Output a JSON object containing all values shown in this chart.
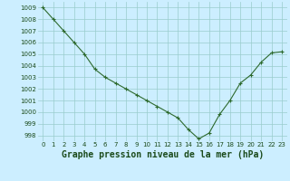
{
  "x": [
    0,
    1,
    2,
    3,
    4,
    5,
    6,
    7,
    8,
    9,
    10,
    11,
    12,
    13,
    14,
    15,
    16,
    17,
    18,
    19,
    20,
    21,
    22,
    23
  ],
  "y": [
    1009.0,
    1008.0,
    1007.0,
    1006.0,
    1005.0,
    1003.7,
    1003.0,
    1002.5,
    1002.0,
    1001.5,
    1001.0,
    1000.5,
    1000.0,
    999.5,
    998.5,
    997.7,
    998.2,
    999.8,
    1001.0,
    1002.5,
    1003.2,
    1004.3,
    1005.1,
    1005.2
  ],
  "line_color": "#2d6a2d",
  "marker": "+",
  "marker_size": 3,
  "bg_color": "#cceeff",
  "grid_color": "#99cccc",
  "xlabel": "Graphe pression niveau de la mer (hPa)",
  "xlabel_fontsize": 7,
  "xlabel_color": "#1a4a1a",
  "tick_color": "#1a4a1a",
  "ylim": [
    997.5,
    1009.5
  ],
  "yticks": [
    998,
    999,
    1000,
    1001,
    1002,
    1003,
    1004,
    1005,
    1006,
    1007,
    1008,
    1009
  ],
  "xlim": [
    -0.5,
    23.5
  ],
  "xticks": [
    0,
    1,
    2,
    3,
    4,
    5,
    6,
    7,
    8,
    9,
    10,
    11,
    12,
    13,
    14,
    15,
    16,
    17,
    18,
    19,
    20,
    21,
    22,
    23
  ]
}
